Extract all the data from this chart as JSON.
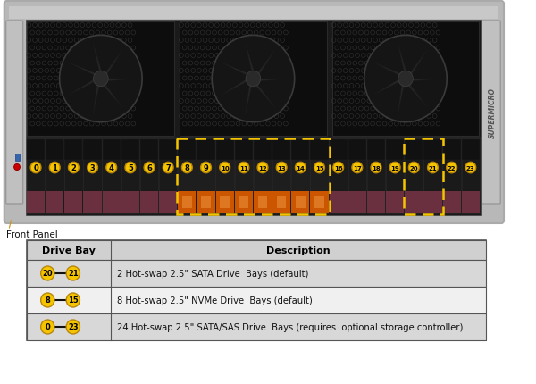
{
  "bg_color": "#ffffff",
  "front_panel_label": "Front Panel",
  "table": {
    "header": [
      "Drive Bay",
      "Description"
    ],
    "rows": [
      {
        "bay_start": "20",
        "bay_end": "21",
        "description": "2 Hot-swap 2.5\" SATA Drive  Bays (default)",
        "row_bg": "#d8d8d8"
      },
      {
        "bay_start": "8",
        "bay_end": "15",
        "description": "8 Hot-swap 2.5\" NVMe Drive  Bays (default)",
        "row_bg": "#f0f0f0"
      },
      {
        "bay_start": "0",
        "bay_end": "23",
        "description": "24 Hot-swap 2.5\" SATA/SAS Drive  Bays (requires  optional storage controller)",
        "row_bg": "#d8d8d8"
      }
    ]
  },
  "badge_fill": "#f5c400",
  "badge_outline": "#b8860b",
  "badge_text_color": "#000000",
  "chassis_silver": "#b8b8b8",
  "chassis_dark": "#888888",
  "chassis_side_silver": "#c8c8c8",
  "drive_bg_dark": "#1a1a1a",
  "drive_color_sata": "#6b3040",
  "drive_color_nvme": "#cc5500",
  "drive_handle_sata": "#7a3850",
  "drive_handle_nvme": "#dd6600",
  "fan_area_bg": "#0d0d0d",
  "fan_module_bg": "#111111",
  "fan_circle_color": "#1a1a1a",
  "dashed_box_color": "#f5c400",
  "mesh_color": "#333333",
  "table_border": "#555555",
  "table_header_bg": "#d0d0d0",
  "supermicro_text": "#555555"
}
